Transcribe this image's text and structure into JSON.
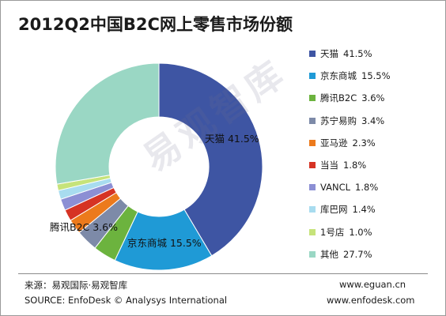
{
  "chart_data": {
    "type": "pie",
    "title": "2012Q2中国B2C网上零售市场份额",
    "series": [
      {
        "name": "天猫",
        "value": 41.5,
        "label": "41.5%",
        "color": "#3e55a3"
      },
      {
        "name": "京东商城",
        "value": 15.5,
        "label": "15.5%",
        "color": "#1f9ad6"
      },
      {
        "name": "腾讯B2C",
        "value": 3.6,
        "label": "3.6%",
        "color": "#6cb33e"
      },
      {
        "name": "苏宁易购",
        "value": 3.4,
        "label": "3.4%",
        "color": "#7d8aa8"
      },
      {
        "name": "亚马逊",
        "value": 2.3,
        "label": "2.3%",
        "color": "#ec7a1c"
      },
      {
        "name": "当当",
        "value": 1.8,
        "label": "1.8%",
        "color": "#d63324"
      },
      {
        "name": "VANCL",
        "value": 1.8,
        "label": "1.8%",
        "color": "#8c8fd4"
      },
      {
        "name": "库巴网",
        "value": 1.4,
        "label": "1.4%",
        "color": "#a8dcef"
      },
      {
        "name": "1号店",
        "value": 1.0,
        "label": "1.0%",
        "color": "#c6e37a"
      },
      {
        "name": "其他",
        "value": 27.7,
        "label": "27.7%",
        "color": "#9ad7c4"
      }
    ],
    "data_labels": [
      {
        "series": 0,
        "text": "天猫  41.5%"
      },
      {
        "series": 1,
        "text": "京东商城  15.5%"
      },
      {
        "series": 2,
        "text": "腾讯B2C  3.6%"
      }
    ],
    "legend_position": "right"
  },
  "watermark": "易观智库",
  "footer": {
    "source_cn": "来源：易观国际·易观智库",
    "source_en": "SOURCE: EnfoDesk © Analysys International",
    "url1": "www.eguan.cn",
    "url2": "www.enfodesk.com"
  }
}
